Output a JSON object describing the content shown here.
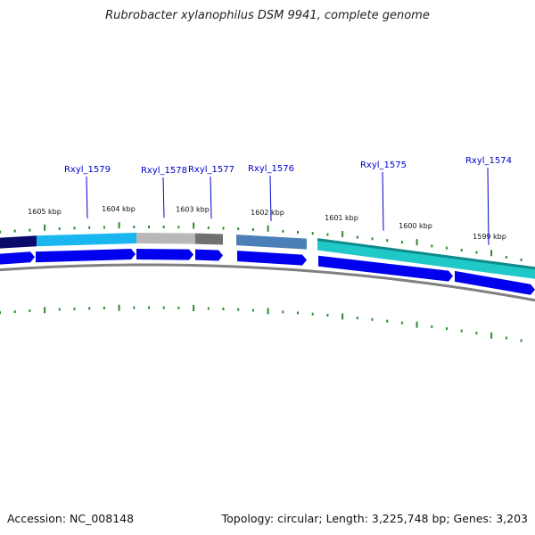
{
  "title": "Rubrobacter xylanophilus DSM 9941, complete genome",
  "footer": {
    "accession": "Accession: NC_008148",
    "summary": "Topology: circular; Length: 3,225,748 bp; Genes: 3,203"
  },
  "ruler": {
    "labels": [
      "1605 kbp",
      "1604 kbp",
      "1603 kbp",
      "1602 kbp",
      "1601 kbp",
      "1600 kbp",
      "1599 kbp"
    ],
    "tick_color": "#2e8b2e"
  },
  "genes": [
    {
      "label": "Rxyl_1579"
    },
    {
      "label": "Rxyl_1578"
    },
    {
      "label": "Rxyl_1577"
    },
    {
      "label": "Rxyl_1576"
    },
    {
      "label": "Rxyl_1575"
    },
    {
      "label": "Rxyl_1574"
    }
  ],
  "colors": {
    "label": "#0000cc",
    "arrow": "#0000ee",
    "backbone": "#808080",
    "segments": [
      "#0a0a6a",
      "#1ab6f0",
      "#b8b8b8",
      "#707070",
      "#4a7fb8",
      "#20c8c8"
    ]
  }
}
